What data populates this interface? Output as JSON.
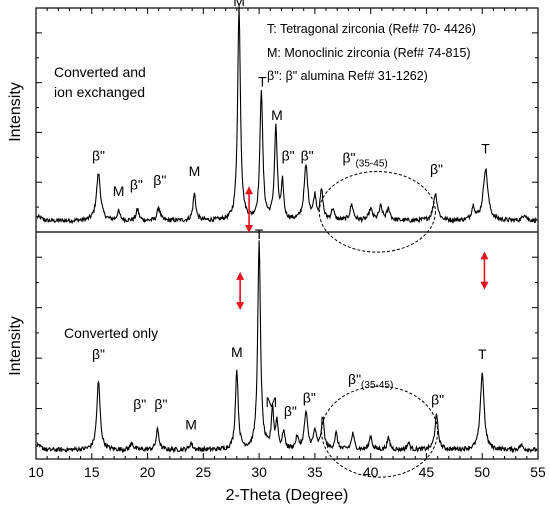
{
  "chart_data": {
    "type": "line",
    "xlabel": "2-Theta (Degree)",
    "ylabel": "Intensity",
    "xlim": [
      10,
      55
    ],
    "xticks": [
      "10",
      "15",
      "20",
      "25",
      "30",
      "35",
      "40",
      "45",
      "50",
      "55"
    ],
    "legend": {
      "placement": "top-right",
      "lines": [
        "T: Tetragonal zirconia (Ref# 70- 4426)",
        "M: Monoclinic zirconia (Ref# 74-815)",
        "β\": β\" alumina Ref# 31-1262)"
      ]
    },
    "colors": {
      "line": "#000000",
      "arrow": "#e8141c",
      "ellipse": "#000000"
    },
    "panels": [
      {
        "name": "top",
        "note_lines": [
          "Converted and",
          "ion exchanged"
        ],
        "baseline": 0.05,
        "peaks": [
          {
            "x": 15.6,
            "h": 0.21,
            "w": 0.22
          },
          {
            "x": 17.4,
            "h": 0.04,
            "w": 0.15
          },
          {
            "x": 19.1,
            "h": 0.05,
            "w": 0.15
          },
          {
            "x": 21.0,
            "h": 0.06,
            "w": 0.15
          },
          {
            "x": 24.2,
            "h": 0.12,
            "w": 0.15
          },
          {
            "x": 28.2,
            "h": 0.95,
            "w": 0.15
          },
          {
            "x": 30.2,
            "h": 0.58,
            "w": 0.15
          },
          {
            "x": 31.5,
            "h": 0.41,
            "w": 0.15
          },
          {
            "x": 32.1,
            "h": 0.16,
            "w": 0.12
          },
          {
            "x": 34.2,
            "h": 0.24,
            "w": 0.2
          },
          {
            "x": 35.0,
            "h": 0.1,
            "w": 0.15
          },
          {
            "x": 35.6,
            "h": 0.13,
            "w": 0.15
          },
          {
            "x": 36.6,
            "h": 0.05,
            "w": 0.15
          },
          {
            "x": 38.3,
            "h": 0.07,
            "w": 0.18
          },
          {
            "x": 40.0,
            "h": 0.05,
            "w": 0.18
          },
          {
            "x": 40.9,
            "h": 0.06,
            "w": 0.18
          },
          {
            "x": 41.6,
            "h": 0.05,
            "w": 0.18
          },
          {
            "x": 45.8,
            "h": 0.12,
            "w": 0.22
          },
          {
            "x": 49.2,
            "h": 0.06,
            "w": 0.18
          },
          {
            "x": 50.3,
            "h": 0.23,
            "w": 0.25
          },
          {
            "x": 53.8,
            "h": 0.03,
            "w": 0.18
          }
        ],
        "labels": [
          {
            "text": "β\"",
            "x": 15.6,
            "y": 0.32
          },
          {
            "text": "M",
            "x": 17.4,
            "y": 0.16
          },
          {
            "text": "β\"",
            "x": 19.0,
            "y": 0.19
          },
          {
            "text": "β\"",
            "x": 21.1,
            "y": 0.21
          },
          {
            "text": "M",
            "x": 24.2,
            "y": 0.25
          },
          {
            "text": "M",
            "x": 28.2,
            "y": 1.01
          },
          {
            "text": "T",
            "x": 30.3,
            "y": 0.65
          },
          {
            "text": "M",
            "x": 31.6,
            "y": 0.5
          },
          {
            "text": "β\"",
            "x": 32.6,
            "y": 0.32
          },
          {
            "text": "β\"",
            "x": 34.3,
            "y": 0.32
          },
          {
            "text": "β\"",
            "x": 39.5,
            "y": 0.31,
            "sub": "(35-45)"
          },
          {
            "text": "β\"",
            "x": 45.9,
            "y": 0.26
          },
          {
            "text": "T",
            "x": 50.3,
            "y": 0.35
          }
        ],
        "ellipse": {
          "cx": 40.6,
          "cy": 0.09,
          "rx": 5.2,
          "ry": 0.18
        }
      },
      {
        "name": "bottom",
        "note_lines": [
          "Converted only"
        ],
        "baseline": 0.04,
        "peaks": [
          {
            "x": 15.6,
            "h": 0.3,
            "w": 0.18
          },
          {
            "x": 18.6,
            "h": 0.03,
            "w": 0.15
          },
          {
            "x": 20.9,
            "h": 0.09,
            "w": 0.15
          },
          {
            "x": 23.9,
            "h": 0.03,
            "w": 0.15
          },
          {
            "x": 28.0,
            "h": 0.35,
            "w": 0.15
          },
          {
            "x": 30.0,
            "h": 0.91,
            "w": 0.15
          },
          {
            "x": 31.2,
            "h": 0.18,
            "w": 0.12
          },
          {
            "x": 31.6,
            "h": 0.12,
            "w": 0.12
          },
          {
            "x": 32.2,
            "h": 0.08,
            "w": 0.12
          },
          {
            "x": 33.4,
            "h": 0.05,
            "w": 0.15
          },
          {
            "x": 34.2,
            "h": 0.16,
            "w": 0.18
          },
          {
            "x": 35.0,
            "h": 0.08,
            "w": 0.15
          },
          {
            "x": 35.7,
            "h": 0.14,
            "w": 0.15
          },
          {
            "x": 36.9,
            "h": 0.07,
            "w": 0.15
          },
          {
            "x": 38.4,
            "h": 0.07,
            "w": 0.15
          },
          {
            "x": 40.0,
            "h": 0.06,
            "w": 0.15
          },
          {
            "x": 41.6,
            "h": 0.05,
            "w": 0.15
          },
          {
            "x": 43.4,
            "h": 0.03,
            "w": 0.15
          },
          {
            "x": 45.9,
            "h": 0.15,
            "w": 0.18
          },
          {
            "x": 50.0,
            "h": 0.34,
            "w": 0.2
          },
          {
            "x": 53.5,
            "h": 0.02,
            "w": 0.18
          }
        ],
        "labels": [
          {
            "text": "β\"",
            "x": 15.6,
            "y": 0.44
          },
          {
            "text": "β\"",
            "x": 19.3,
            "y": 0.22
          },
          {
            "text": "β\"",
            "x": 21.2,
            "y": 0.22
          },
          {
            "text": "M",
            "x": 23.9,
            "y": 0.13
          },
          {
            "text": "M",
            "x": 28.0,
            "y": 0.45
          },
          {
            "text": "T",
            "x": 30.0,
            "y": 0.97
          },
          {
            "text": "M",
            "x": 31.1,
            "y": 0.23
          },
          {
            "text": "β\"",
            "x": 32.8,
            "y": 0.19
          },
          {
            "text": "β\"",
            "x": 34.5,
            "y": 0.25
          },
          {
            "text": "β\"",
            "x": 40.0,
            "y": 0.33,
            "sub": "(35-45)"
          },
          {
            "text": "β\"",
            "x": 46.0,
            "y": 0.24
          },
          {
            "text": "T",
            "x": 50.0,
            "y": 0.44
          }
        ],
        "ellipse": {
          "cx": 40.8,
          "cy": 0.12,
          "rx": 5.2,
          "ry": 0.2
        }
      }
    ],
    "arrows": [
      {
        "panel": "top",
        "x": 29.1,
        "y1": 0.2,
        "y2": 0.0
      },
      {
        "panel": "bottom",
        "x": 28.3,
        "y1": 0.82,
        "y2": 0.66
      },
      {
        "panel": "bottom",
        "x": 50.2,
        "y1": 0.91,
        "y2": 0.75
      }
    ]
  }
}
